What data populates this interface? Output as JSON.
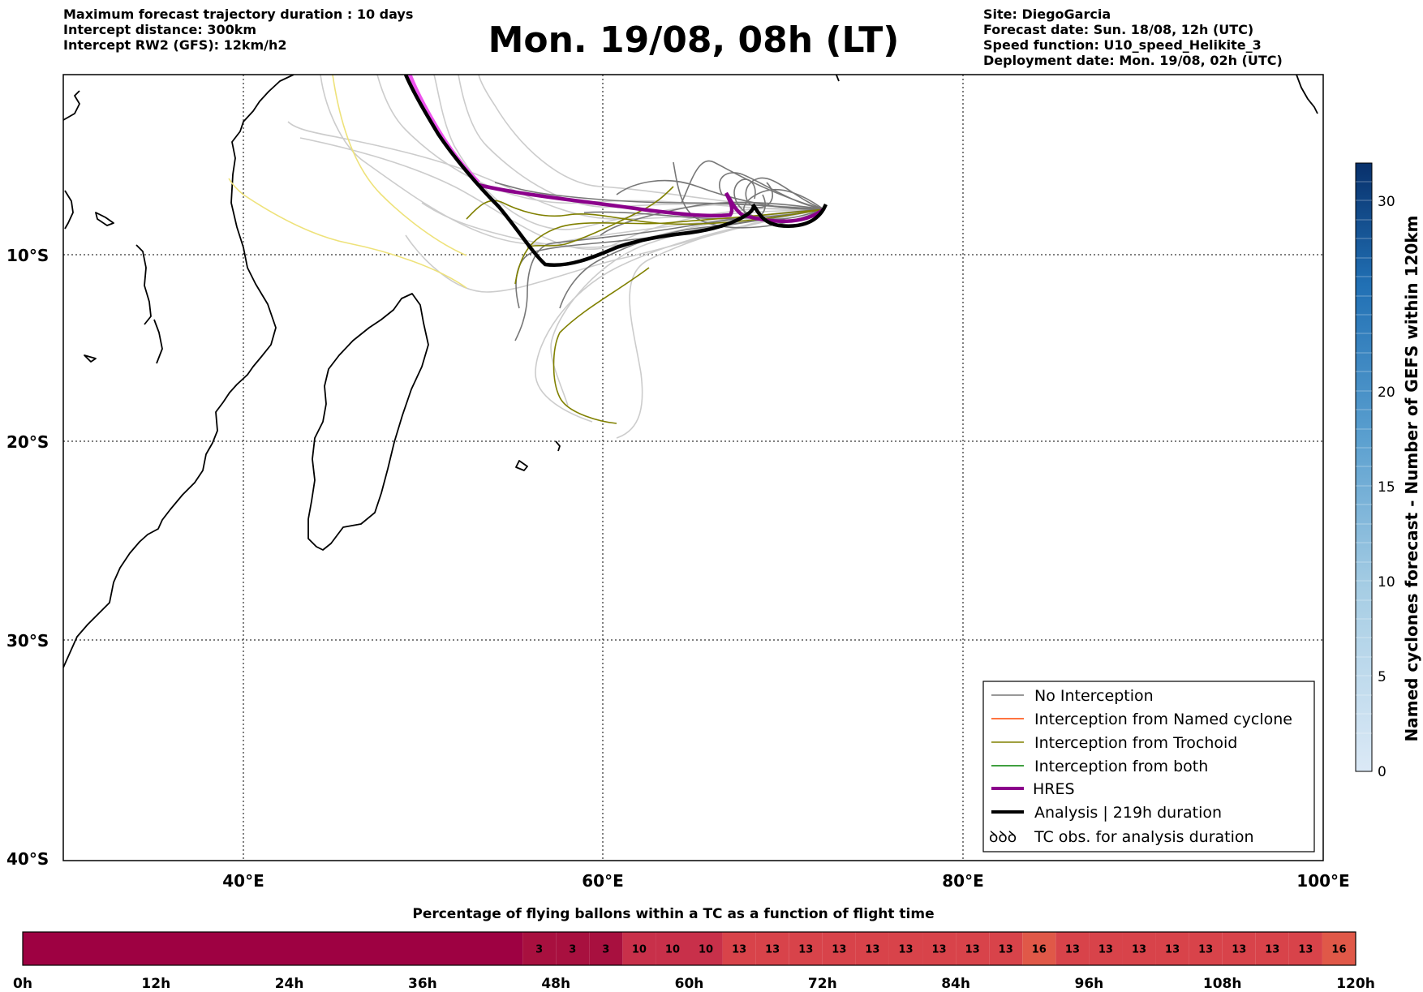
{
  "header": {
    "left": [
      "Maximum forecast trajectory duration : 10 days",
      "Intercept distance: 300km",
      "Intercept RW2 (GFS):  12km/h2"
    ],
    "title": "Mon. 19/08, 08h (LT)",
    "right": [
      "Site: DiegoGarcia",
      "Forecast date: Sun. 18/08, 12h (UTC)",
      "Speed function: U10_speed_Helikite_3",
      "Deployment date: Mon. 19/08, 02h (UTC)"
    ]
  },
  "map": {
    "lon_range": [
      30,
      100
    ],
    "lat_range": [
      0,
      -40
    ],
    "lon_gridlines": [
      40,
      60,
      80
    ],
    "lat_gridlines": [
      -10,
      -20,
      -30
    ],
    "lon_labels": [
      "40°E",
      "60°E",
      "80°E",
      "100°E"
    ],
    "lat_labels": [
      "10°S",
      "20°S",
      "30°S",
      "40°S"
    ]
  },
  "colorbar": {
    "title": "Named cyclones forecast - Number of GEFS within 120km",
    "range": [
      0,
      32
    ],
    "ticks": [
      "0",
      "5",
      "10",
      "15",
      "20",
      "30"
    ],
    "color_low": "#dbe9f6",
    "color_high": "#08306b"
  },
  "legend": {
    "items": [
      {
        "label": "No Interception",
        "color": "#777777",
        "style": "thin"
      },
      {
        "label": "Interception from Named cyclone",
        "color": "#ff4500",
        "style": "thin"
      },
      {
        "label": "Interception from Trochoid",
        "color": "#808000",
        "style": "thin"
      },
      {
        "label": "Interception from both",
        "color": "#008000",
        "style": "thin"
      },
      {
        "label": "HRES",
        "color": "#8b008b",
        "style": "thick"
      },
      {
        "label": "Analysis | 219h duration",
        "color": "#000000",
        "style": "thick"
      },
      {
        "label": "TC obs. for analysis duration",
        "color": "#000000",
        "style": "symbol",
        "symbol": "ꝺꝺꝺ"
      }
    ]
  },
  "percentage_bar": {
    "title": "Percentage of flying ballons within a TC as a function of flight time",
    "hours": [
      "0h",
      "12h",
      "24h",
      "36h",
      "48h",
      "60h",
      "72h",
      "84h",
      "96h",
      "108h",
      "120h"
    ],
    "segments": [
      {
        "from_h": 0,
        "to_h": 45,
        "value": "",
        "color": "#9e0142"
      },
      {
        "from_h": 45,
        "to_h": 48,
        "value": "3",
        "color": "#a8103f"
      },
      {
        "from_h": 48,
        "to_h": 51,
        "value": "3",
        "color": "#a8103f"
      },
      {
        "from_h": 51,
        "to_h": 54,
        "value": "3",
        "color": "#a8103f"
      },
      {
        "from_h": 54,
        "to_h": 57,
        "value": "10",
        "color": "#c8304a"
      },
      {
        "from_h": 57,
        "to_h": 60,
        "value": "10",
        "color": "#c8304a"
      },
      {
        "from_h": 60,
        "to_h": 63,
        "value": "10",
        "color": "#c8304a"
      },
      {
        "from_h": 63,
        "to_h": 66,
        "value": "13",
        "color": "#d8434a"
      },
      {
        "from_h": 66,
        "to_h": 69,
        "value": "13",
        "color": "#d8434a"
      },
      {
        "from_h": 69,
        "to_h": 72,
        "value": "13",
        "color": "#d8434a"
      },
      {
        "from_h": 72,
        "to_h": 75,
        "value": "13",
        "color": "#d8434a"
      },
      {
        "from_h": 75,
        "to_h": 78,
        "value": "13",
        "color": "#d8434a"
      },
      {
        "from_h": 78,
        "to_h": 81,
        "value": "13",
        "color": "#d8434a"
      },
      {
        "from_h": 81,
        "to_h": 84,
        "value": "13",
        "color": "#d8434a"
      },
      {
        "from_h": 84,
        "to_h": 87,
        "value": "13",
        "color": "#d8434a"
      },
      {
        "from_h": 87,
        "to_h": 90,
        "value": "13",
        "color": "#d8434a"
      },
      {
        "from_h": 90,
        "to_h": 93,
        "value": "16",
        "color": "#e05848"
      },
      {
        "from_h": 93,
        "to_h": 96,
        "value": "13",
        "color": "#d8434a"
      },
      {
        "from_h": 96,
        "to_h": 99,
        "value": "13",
        "color": "#d8434a"
      },
      {
        "from_h": 99,
        "to_h": 102,
        "value": "13",
        "color": "#d8434a"
      },
      {
        "from_h": 102,
        "to_h": 105,
        "value": "13",
        "color": "#d8434a"
      },
      {
        "from_h": 105,
        "to_h": 108,
        "value": "13",
        "color": "#d8434a"
      },
      {
        "from_h": 108,
        "to_h": 111,
        "value": "13",
        "color": "#d8434a"
      },
      {
        "from_h": 111,
        "to_h": 114,
        "value": "13",
        "color": "#d8434a"
      },
      {
        "from_h": 114,
        "to_h": 117,
        "value": "13",
        "color": "#d8434a"
      },
      {
        "from_h": 117,
        "to_h": 120,
        "value": "16",
        "color": "#e05848"
      }
    ]
  }
}
